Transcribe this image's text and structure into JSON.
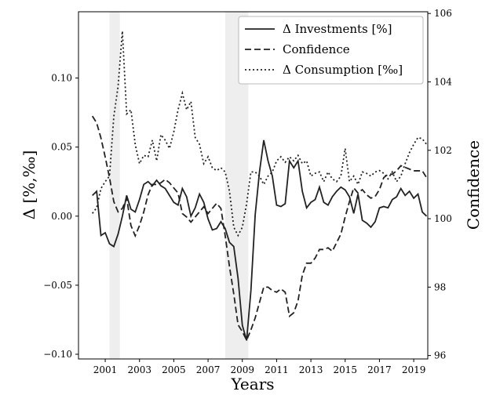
{
  "chart_data": {
    "type": "line",
    "xlabel": "Years",
    "ylabel": "Δ [%,‰]",
    "y2label": "Confidence",
    "xlim": [
      1999.44,
      2019.82
    ],
    "xticks": [
      2001,
      2003,
      2005,
      2007,
      2009,
      2011,
      2013,
      2015,
      2017,
      2019
    ],
    "ylim": [
      -0.1034,
      0.148
    ],
    "yticks": [
      {
        "value": -0.1,
        "label": "−0.10"
      },
      {
        "value": -0.05,
        "label": "−0.05"
      },
      {
        "value": 0,
        "label": "0.00"
      },
      {
        "value": 0.05,
        "label": "0.05"
      },
      {
        "value": 0.1,
        "label": "0.10"
      }
    ],
    "y2lim": [
      95.9,
      106.05
    ],
    "y2ticks": [
      96,
      98,
      100,
      102,
      104,
      106
    ],
    "legend": "upper right",
    "shaded": [
      [
        2001.25,
        2001.85
      ],
      [
        2008.0,
        2009.35
      ]
    ],
    "shade_color": "#eeeeee",
    "x": [
      2000.25,
      2000.5,
      2000.75,
      2001,
      2001.25,
      2001.5,
      2001.75,
      2002,
      2002.25,
      2002.5,
      2002.75,
      2003,
      2003.25,
      2003.5,
      2003.75,
      2004,
      2004.25,
      2004.5,
      2004.75,
      2005,
      2005.25,
      2005.5,
      2005.75,
      2006,
      2006.25,
      2006.5,
      2006.75,
      2007,
      2007.25,
      2007.5,
      2007.75,
      2008,
      2008.25,
      2008.5,
      2008.75,
      2009,
      2009.25,
      2009.5,
      2009.75,
      2010,
      2010.25,
      2010.5,
      2010.75,
      2011,
      2011.25,
      2011.5,
      2011.75,
      2012,
      2012.25,
      2012.5,
      2012.75,
      2013,
      2013.25,
      2013.5,
      2013.75,
      2014,
      2014.25,
      2014.5,
      2014.75,
      2015,
      2015.25,
      2015.5,
      2015.75,
      2016,
      2016.25,
      2016.5,
      2016.75,
      2017,
      2017.25,
      2017.5,
      2017.75,
      2018,
      2018.25,
      2018.5,
      2018.75,
      2019,
      2019.25,
      2019.5,
      2019.75
    ],
    "series": [
      {
        "name": "Δ Investments [%]",
        "color": "#222222",
        "dash": "solid",
        "axis": "y",
        "values": [
          0.015,
          0.018,
          -0.014,
          -0.012,
          -0.02,
          -0.022,
          -0.013,
          0.0,
          0.015,
          0.005,
          0.003,
          0.012,
          0.023,
          0.025,
          0.022,
          0.026,
          0.022,
          0.02,
          0.015,
          0.01,
          0.008,
          0.02,
          0.014,
          0.0,
          0.006,
          0.016,
          0.01,
          -0.002,
          -0.01,
          -0.009,
          -0.004,
          -0.009,
          -0.019,
          -0.022,
          -0.045,
          -0.079,
          -0.09,
          -0.054,
          0.001,
          0.032,
          0.055,
          0.04,
          0.029,
          0.008,
          0.007,
          0.009,
          0.04,
          0.035,
          0.04,
          0.018,
          0.006,
          0.01,
          0.012,
          0.021,
          0.01,
          0.008,
          0.014,
          0.018,
          0.021,
          0.019,
          0.014,
          0.002,
          0.016,
          -0.003,
          -0.005,
          -0.008,
          -0.004,
          0.006,
          0.007,
          0.006,
          0.012,
          0.014,
          0.02,
          0.015,
          0.018,
          0.013,
          0.016,
          0.003,
          0.0
        ]
      },
      {
        "name": "Confidence",
        "color": "#222222",
        "dash": "dashed",
        "axis": "y2",
        "values": [
          103.0,
          102.8,
          102.36,
          101.8,
          101.2,
          100.5,
          100.2,
          100.3,
          100.6,
          99.8,
          99.5,
          99.8,
          100.2,
          100.7,
          101.0,
          101.0,
          101.05,
          101.15,
          101.05,
          100.9,
          100.75,
          100.15,
          100.05,
          99.9,
          100.05,
          100.2,
          100.35,
          100.15,
          100.3,
          100.45,
          100.3,
          99.5,
          98.6,
          97.8,
          96.9,
          96.7,
          96.45,
          96.75,
          97.1,
          97.55,
          98.0,
          98.0,
          97.9,
          97.85,
          97.95,
          97.85,
          97.15,
          97.25,
          97.6,
          98.35,
          98.7,
          98.7,
          98.85,
          99.1,
          99.1,
          99.15,
          99.05,
          99.3,
          99.55,
          100.05,
          100.5,
          100.9,
          100.75,
          100.85,
          100.7,
          100.6,
          100.65,
          100.85,
          101.2,
          101.3,
          101.3,
          101.4,
          101.55,
          101.5,
          101.45,
          101.4,
          101.4,
          101.4,
          101.2
        ]
      },
      {
        "name": "Δ Consumption [‰]",
        "color": "#222222",
        "dash": "dotted",
        "axis": "y",
        "values": [
          0.002,
          0.006,
          0.02,
          0.025,
          0.029,
          0.072,
          0.094,
          0.134,
          0.074,
          0.077,
          0.052,
          0.038,
          0.044,
          0.043,
          0.055,
          0.04,
          0.059,
          0.055,
          0.049,
          0.061,
          0.077,
          0.089,
          0.077,
          0.083,
          0.057,
          0.052,
          0.038,
          0.043,
          0.035,
          0.033,
          0.035,
          0.032,
          0.018,
          -0.008,
          -0.014,
          -0.008,
          0.009,
          0.032,
          0.032,
          0.029,
          0.023,
          0.029,
          0.032,
          0.04,
          0.043,
          0.039,
          0.043,
          0.04,
          0.044,
          0.038,
          0.04,
          0.029,
          0.031,
          0.032,
          0.025,
          0.032,
          0.027,
          0.025,
          0.029,
          0.049,
          0.025,
          0.029,
          0.023,
          0.032,
          0.031,
          0.029,
          0.032,
          0.033,
          0.031,
          0.027,
          0.032,
          0.025,
          0.029,
          0.038,
          0.046,
          0.052,
          0.057,
          0.056,
          0.052
        ]
      }
    ]
  }
}
